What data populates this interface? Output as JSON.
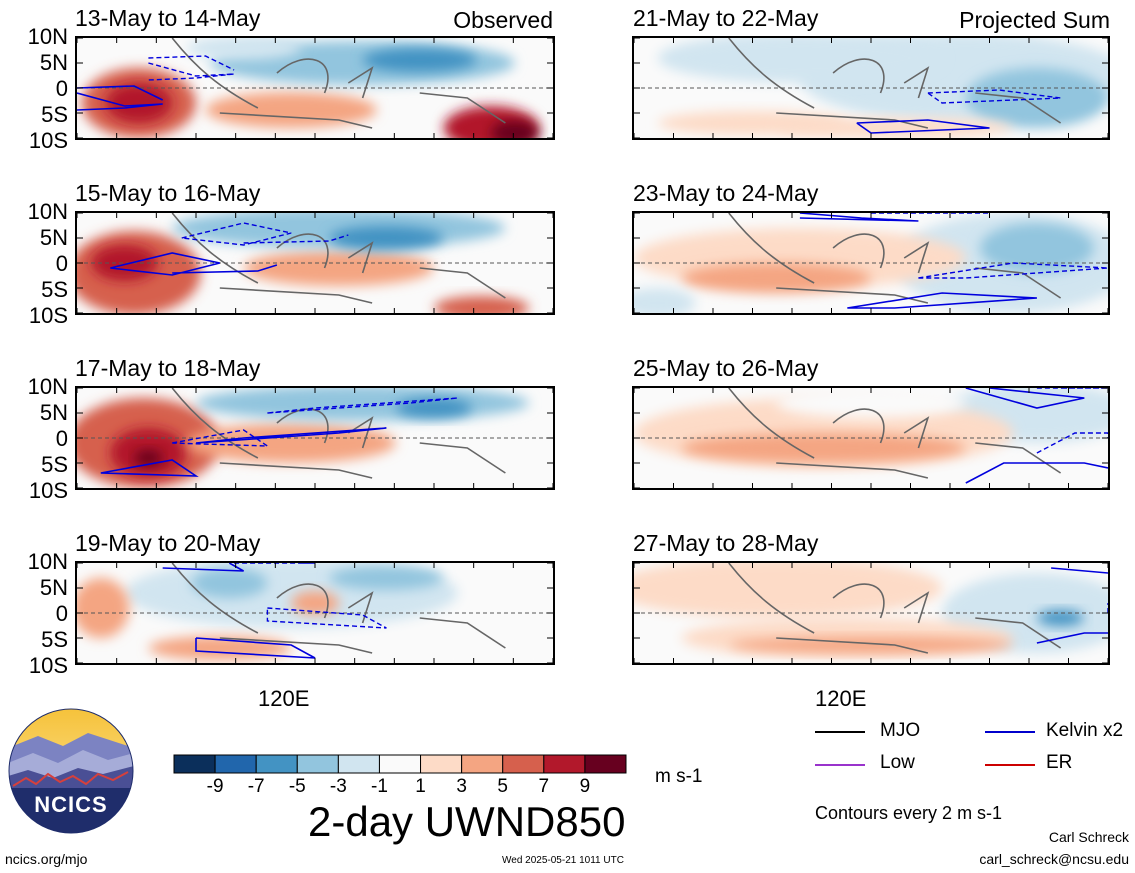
{
  "chart_data": {
    "type": "heatmap",
    "title": "2-day UWND850",
    "units": "m s-1",
    "colorbar": {
      "labels": [
        "-9",
        "-7",
        "-5",
        "-3",
        "-1",
        "1",
        "3",
        "5",
        "7",
        "9"
      ],
      "colors": [
        "#0b2f5b",
        "#2166ac",
        "#4393c3",
        "#92c5de",
        "#d1e5f0",
        "#fafafa",
        "#fddbc7",
        "#f4a582",
        "#d6604d",
        "#b2182b",
        "#67001f"
      ]
    },
    "ylabels": [
      "10N",
      "5N",
      "0",
      "5S",
      "10S"
    ],
    "xlabel_tick": "120E",
    "panels": [
      {
        "title": "13-May to 14-May",
        "corner": "Observed",
        "column": "left",
        "row": 0,
        "blobs": [
          {
            "cx": 0.13,
            "cy": 0.65,
            "rx": 0.12,
            "ry": 0.35,
            "c": 8
          },
          {
            "cx": 0.13,
            "cy": 0.65,
            "rx": 0.07,
            "ry": 0.2,
            "c": 9
          },
          {
            "cx": 0.45,
            "cy": 0.72,
            "rx": 0.18,
            "ry": 0.18,
            "c": 7
          },
          {
            "cx": 0.87,
            "cy": 0.9,
            "rx": 0.1,
            "ry": 0.22,
            "c": 9
          },
          {
            "cx": 0.92,
            "cy": 0.95,
            "rx": 0.05,
            "ry": 0.12,
            "c": 10
          },
          {
            "cx": 0.6,
            "cy": 0.25,
            "rx": 0.32,
            "ry": 0.22,
            "c": 3
          },
          {
            "cx": 0.72,
            "cy": 0.22,
            "rx": 0.12,
            "ry": 0.12,
            "c": 2
          },
          {
            "cx": 0.35,
            "cy": 0.1,
            "rx": 0.12,
            "ry": 0.12,
            "c": 4
          }
        ],
        "kelvin": [
          [
            0.0,
            0.55,
            0.1,
            0.68,
            0.18,
            0.66,
            0.1,
            0.7,
            0.0,
            0.72
          ],
          [
            0.0,
            0.5,
            0.12,
            0.48,
            0.18,
            0.62
          ]
        ]
      },
      {
        "title": "15-May to 16-May",
        "corner": "",
        "column": "left",
        "row": 1,
        "blobs": [
          {
            "cx": 0.12,
            "cy": 0.6,
            "rx": 0.14,
            "ry": 0.42,
            "c": 8
          },
          {
            "cx": 0.1,
            "cy": 0.5,
            "rx": 0.07,
            "ry": 0.18,
            "c": 9
          },
          {
            "cx": 0.55,
            "cy": 0.55,
            "rx": 0.2,
            "ry": 0.18,
            "c": 7
          },
          {
            "cx": 0.85,
            "cy": 0.95,
            "rx": 0.1,
            "ry": 0.12,
            "c": 8
          },
          {
            "cx": 0.55,
            "cy": 0.15,
            "rx": 0.35,
            "ry": 0.2,
            "c": 3
          },
          {
            "cx": 0.65,
            "cy": 0.25,
            "rx": 0.12,
            "ry": 0.12,
            "c": 2
          }
        ],
        "kelvin": [
          [
            0.07,
            0.55,
            0.2,
            0.4,
            0.3,
            0.5,
            0.2,
            0.62,
            0.07,
            0.55
          ],
          [
            0.2,
            0.6,
            0.38,
            0.58,
            0.42,
            0.52
          ]
        ]
      },
      {
        "title": "17-May to 18-May",
        "corner": "",
        "column": "left",
        "row": 2,
        "blobs": [
          {
            "cx": 0.14,
            "cy": 0.55,
            "rx": 0.16,
            "ry": 0.45,
            "c": 8
          },
          {
            "cx": 0.15,
            "cy": 0.65,
            "rx": 0.08,
            "ry": 0.25,
            "c": 9
          },
          {
            "cx": 0.15,
            "cy": 0.7,
            "rx": 0.03,
            "ry": 0.08,
            "c": 10
          },
          {
            "cx": 0.45,
            "cy": 0.55,
            "rx": 0.22,
            "ry": 0.2,
            "c": 7
          },
          {
            "cx": 0.6,
            "cy": 0.15,
            "rx": 0.35,
            "ry": 0.18,
            "c": 3
          },
          {
            "cx": 0.75,
            "cy": 0.2,
            "rx": 0.08,
            "ry": 0.1,
            "c": 2
          }
        ],
        "kelvin": [
          [
            0.05,
            0.85,
            0.2,
            0.72,
            0.25,
            0.88,
            0.05,
            0.85
          ],
          [
            0.25,
            0.55,
            0.55,
            0.45,
            0.65,
            0.4,
            0.35,
            0.5,
            0.25,
            0.55
          ]
        ]
      },
      {
        "title": "19-May to 20-May",
        "corner": "",
        "column": "left",
        "row": 3,
        "blobs": [
          {
            "cx": 0.45,
            "cy": 0.3,
            "rx": 0.35,
            "ry": 0.35,
            "c": 4
          },
          {
            "cx": 0.32,
            "cy": 0.2,
            "rx": 0.08,
            "ry": 0.15,
            "c": 3
          },
          {
            "cx": 0.65,
            "cy": 0.15,
            "rx": 0.12,
            "ry": 0.12,
            "c": 3
          },
          {
            "cx": 0.5,
            "cy": 0.4,
            "rx": 0.05,
            "ry": 0.12,
            "c": 7
          },
          {
            "cx": 0.3,
            "cy": 0.85,
            "rx": 0.15,
            "ry": 0.12,
            "c": 7
          },
          {
            "cx": 0.05,
            "cy": 0.45,
            "rx": 0.06,
            "ry": 0.3,
            "c": 7
          }
        ],
        "kelvin": [
          [
            0.18,
            0.05,
            0.35,
            0.08,
            0.32,
            0.0
          ],
          [
            0.25,
            0.75,
            0.45,
            0.82,
            0.5,
            0.95,
            0.25,
            0.88,
            0.25,
            0.75
          ]
        ]
      },
      {
        "title": "21-May to 22-May",
        "corner": "Projected Sum",
        "column": "right",
        "row": 0,
        "blobs": [
          {
            "cx": 0.7,
            "cy": 0.4,
            "rx": 0.35,
            "ry": 0.45,
            "c": 4
          },
          {
            "cx": 0.85,
            "cy": 0.6,
            "rx": 0.15,
            "ry": 0.3,
            "c": 3
          },
          {
            "cx": 0.35,
            "cy": 0.2,
            "rx": 0.3,
            "ry": 0.25,
            "c": 4
          },
          {
            "cx": 0.25,
            "cy": 0.85,
            "rx": 0.2,
            "ry": 0.12,
            "c": 6
          },
          {
            "cx": 0.55,
            "cy": 0.9,
            "rx": 0.25,
            "ry": 0.1,
            "c": 6
          }
        ],
        "kelvin": [
          [
            0.47,
            0.85,
            0.62,
            0.82,
            0.75,
            0.9,
            0.5,
            0.95,
            0.47,
            0.85
          ]
        ]
      },
      {
        "title": "23-May to 24-May",
        "corner": "",
        "column": "right",
        "row": 1,
        "blobs": [
          {
            "cx": 0.8,
            "cy": 0.5,
            "rx": 0.25,
            "ry": 0.5,
            "c": 4
          },
          {
            "cx": 0.85,
            "cy": 0.35,
            "rx": 0.12,
            "ry": 0.25,
            "c": 3
          },
          {
            "cx": 0.35,
            "cy": 0.45,
            "rx": 0.35,
            "ry": 0.3,
            "c": 6
          },
          {
            "cx": 0.3,
            "cy": 0.65,
            "rx": 0.2,
            "ry": 0.15,
            "c": 7
          },
          {
            "cx": 0.05,
            "cy": 0.9,
            "rx": 0.08,
            "ry": 0.15,
            "c": 4
          }
        ],
        "kelvin": [
          [
            0.35,
            0.0,
            0.48,
            0.05,
            0.6,
            0.08,
            0.35,
            0.05
          ],
          [
            0.45,
            0.95,
            0.65,
            0.8,
            0.85,
            0.85,
            0.55,
            0.95,
            0.45,
            0.95
          ]
        ]
      },
      {
        "title": "25-May to 26-May",
        "corner": "",
        "column": "right",
        "row": 2,
        "blobs": [
          {
            "cx": 0.85,
            "cy": 0.25,
            "rx": 0.2,
            "ry": 0.3,
            "c": 4
          },
          {
            "cx": 0.4,
            "cy": 0.45,
            "rx": 0.4,
            "ry": 0.35,
            "c": 6
          },
          {
            "cx": 0.4,
            "cy": 0.6,
            "rx": 0.3,
            "ry": 0.15,
            "c": 7
          },
          {
            "cx": 0.5,
            "cy": 0.15,
            "rx": 0.2,
            "ry": 0.15,
            "c": 5
          }
        ],
        "kelvin": [
          [
            0.7,
            0.0,
            0.85,
            0.2,
            0.95,
            0.1,
            0.75,
            0.0
          ],
          [
            0.7,
            0.95,
            0.78,
            0.75,
            0.95,
            0.75,
            1.0,
            0.8
          ]
        ]
      },
      {
        "title": "27-May to 28-May",
        "corner": "",
        "column": "right",
        "row": 3,
        "blobs": [
          {
            "cx": 0.85,
            "cy": 0.5,
            "rx": 0.2,
            "ry": 0.4,
            "c": 4
          },
          {
            "cx": 0.9,
            "cy": 0.55,
            "rx": 0.05,
            "ry": 0.08,
            "c": 2
          },
          {
            "cx": 0.3,
            "cy": 0.25,
            "rx": 0.35,
            "ry": 0.3,
            "c": 6
          },
          {
            "cx": 0.45,
            "cy": 0.75,
            "rx": 0.35,
            "ry": 0.2,
            "c": 6
          },
          {
            "cx": 0.5,
            "cy": 0.82,
            "rx": 0.3,
            "ry": 0.08,
            "c": 7
          }
        ],
        "kelvin": [
          [
            0.88,
            0.05,
            1.0,
            0.1
          ],
          [
            0.85,
            0.8,
            0.95,
            0.7,
            1.0,
            0.7
          ]
        ]
      }
    ],
    "legend": [
      {
        "label": "MJO",
        "color": "#000000"
      },
      {
        "label": "Kelvin x2",
        "color": "#0000cc"
      },
      {
        "label": "Low",
        "color": "#9933cc"
      },
      {
        "label": "ER",
        "color": "#cc0000"
      }
    ],
    "contour_note": "Contours every 2 m s-1"
  },
  "logo": {
    "text": "NCICS"
  },
  "footer": {
    "left": "ncics.org/mjo",
    "center": "Wed 2025-05-21 1011 UTC",
    "author": "Carl Schreck",
    "email": "carl_schreck@ncsu.edu"
  }
}
